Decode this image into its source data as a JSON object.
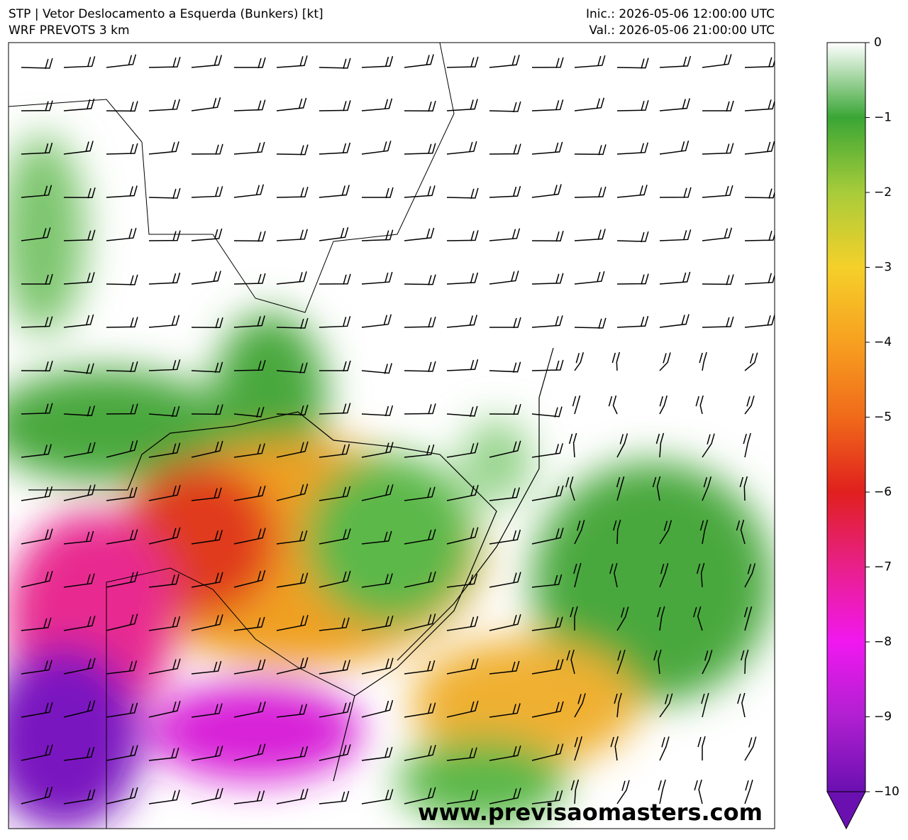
{
  "header": {
    "title": "STP | Vetor Deslocamento a Esquerda (Bunkers) [kt]",
    "subtitle": "WRF PREVOTS 3 km",
    "init": "Inic.: 2026-05-06 12:00:00 UTC",
    "valid": "Val.: 2026-05-06 21:00:00 UTC"
  },
  "colorbar": {
    "range": [
      -10,
      0
    ],
    "colors": [
      "#ffffff",
      "#3aa635",
      "#a8cc3a",
      "#f5d02a",
      "#f7a020",
      "#f06a1a",
      "#e0201e",
      "#e8208a",
      "#f018f0",
      "#b020d0",
      "#6a10b0"
    ],
    "ticks": [
      0,
      {
        "value": -1,
        "label": "−1"
      },
      {
        "value": -2,
        "label": "−2"
      },
      {
        "value": -3,
        "label": "−3"
      },
      {
        "value": -4,
        "label": "−4"
      },
      {
        "value": -5,
        "label": "−5"
      },
      {
        "value": -6,
        "label": "−6"
      },
      {
        "value": -7,
        "label": "−7"
      },
      {
        "value": -8,
        "label": "−8"
      },
      {
        "value": -9,
        "label": "−9"
      },
      {
        "value": -10,
        "label": "−10"
      }
    ]
  },
  "watermark": "www.previsaomasters.com"
}
